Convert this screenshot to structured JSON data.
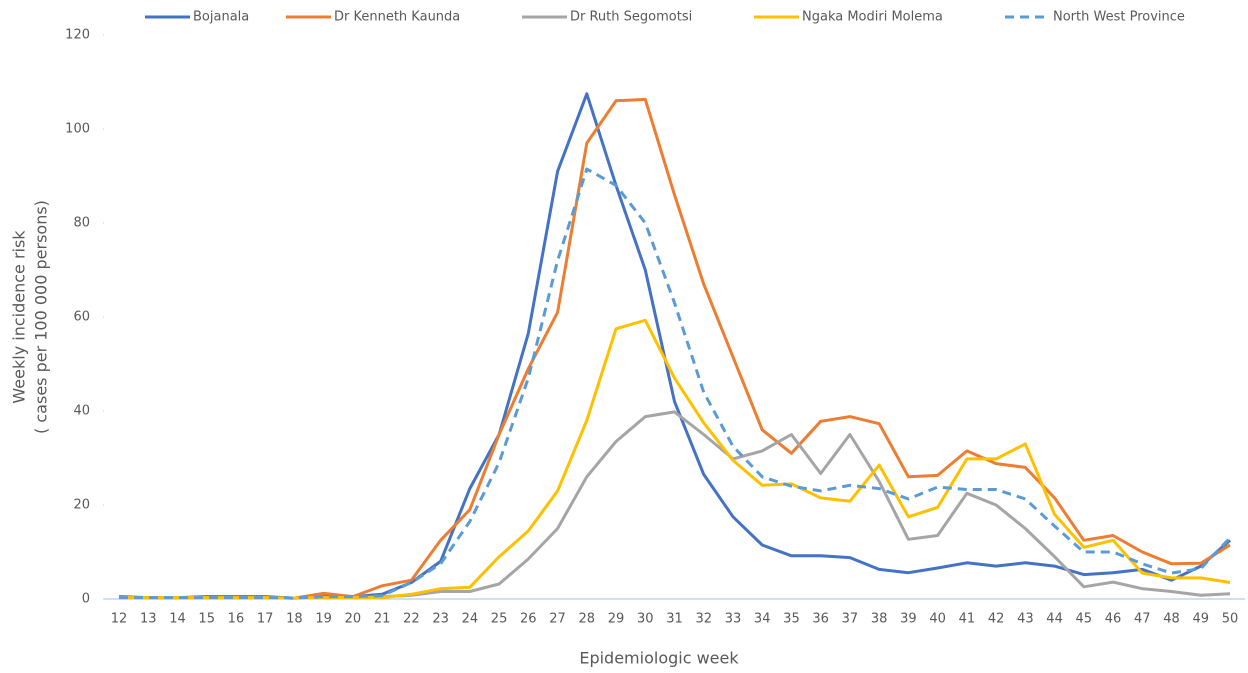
{
  "chart_data": {
    "type": "line",
    "y_label": [
      "Weekly incidence risk",
      "( cases per 100 000 persons)"
    ],
    "x_label": "Epidemiologic week",
    "categories": [
      12,
      13,
      14,
      15,
      16,
      17,
      18,
      19,
      20,
      21,
      22,
      23,
      24,
      25,
      26,
      27,
      28,
      29,
      30,
      31,
      32,
      33,
      34,
      35,
      36,
      37,
      38,
      39,
      40,
      41,
      42,
      43,
      44,
      45,
      46,
      47,
      48,
      49,
      50
    ],
    "ylim": [
      0,
      120
    ],
    "yticks": [
      0,
      20,
      40,
      60,
      80,
      100,
      120
    ],
    "grid": false,
    "legend": "top",
    "series": [
      {
        "name": "Bojanala",
        "color": "#4472c4",
        "dashed": false,
        "values": [
          0.5,
          0.3,
          0.3,
          0.5,
          0.5,
          0.5,
          0.2,
          0.5,
          0.5,
          1,
          3.5,
          8,
          23.5,
          35,
          56.5,
          91,
          107.5,
          88,
          70,
          42,
          26.5,
          17.5,
          11.5,
          9.2,
          9.2,
          8.8,
          6.3,
          5.6,
          6.6,
          7.7,
          7,
          7.7,
          7,
          5.2,
          5.6,
          6.3,
          4,
          7,
          12.5
        ]
      },
      {
        "name": "Dr Kenneth Kaunda",
        "color": "#ed7d31",
        "dashed": false,
        "values": [
          0.3,
          0.3,
          0.3,
          0.3,
          0.3,
          0.3,
          0.2,
          1.2,
          0.5,
          2.8,
          4,
          12.5,
          19,
          35,
          49,
          61,
          97,
          106,
          106.3,
          86,
          67,
          51.5,
          36,
          31,
          37.8,
          38.8,
          37.3,
          26,
          26.3,
          31.5,
          28.8,
          28,
          21.5,
          12.5,
          13.5,
          10,
          7.5,
          7.6,
          11.5
        ]
      },
      {
        "name": "Dr Ruth Segomotsi",
        "color": "#a5a5a5",
        "dashed": false,
        "values": [
          0.3,
          0.3,
          0.3,
          0.3,
          0.3,
          0.3,
          0.2,
          0.3,
          0.3,
          0.5,
          0.8,
          1.6,
          1.6,
          3.2,
          8.5,
          15,
          26,
          33.5,
          38.8,
          39.8,
          35,
          29.8,
          31.5,
          35,
          26.7,
          35,
          25,
          12.7,
          13.5,
          22.5,
          20,
          15,
          9,
          2.6,
          3.6,
          2.2,
          1.6,
          0.8,
          1.1
        ]
      },
      {
        "name": "Ngaka Modiri Molema",
        "color": "#ffc000",
        "dashed": false,
        "values": [
          0.3,
          0.3,
          0.3,
          0.3,
          0.3,
          0.3,
          0.2,
          0.3,
          0.3,
          0.3,
          1,
          2.2,
          2.5,
          9,
          14.5,
          23,
          38,
          57.5,
          59.3,
          47,
          37.5,
          29.5,
          24.2,
          24.5,
          21.5,
          20.8,
          28.5,
          17.5,
          19.5,
          29.8,
          29.8,
          33,
          18,
          11,
          12.5,
          5.5,
          4.5,
          4.5,
          3.5
        ]
      },
      {
        "name": "North West Province",
        "color": "#5b9bd5",
        "dashed": true,
        "values": [
          0.3,
          0.3,
          0.3,
          0.3,
          0.3,
          0.3,
          0.2,
          0.5,
          0.5,
          0.7,
          3.5,
          7.5,
          16.5,
          29,
          47,
          72,
          91.5,
          88,
          80,
          63,
          44,
          32.5,
          26,
          24,
          23,
          24.2,
          23.5,
          21.3,
          23.8,
          23.3,
          23.3,
          21.3,
          15.5,
          10,
          10,
          7.5,
          5.5,
          6.5,
          13
        ]
      }
    ]
  }
}
